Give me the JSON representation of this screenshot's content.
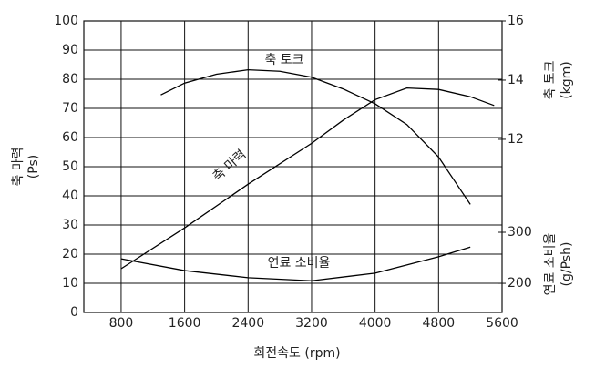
{
  "chart_data": {
    "type": "line",
    "xlabel": "회전속도 (rpm)",
    "ylabel": "축 마력",
    "yunit": "(Ps)",
    "y2label": "축 토크",
    "y2unit": "(kgm)",
    "y3label": "연료 소비율",
    "y3unit": "(g/Psh)",
    "xlim": [
      330,
      5600
    ],
    "xticks": [
      800,
      1600,
      2400,
      3200,
      4000,
      4800,
      5600
    ],
    "ylim": [
      0,
      100
    ],
    "yticks": [
      0,
      10,
      20,
      30,
      40,
      50,
      60,
      70,
      80,
      90,
      100
    ],
    "y2lim": [
      6.15,
      16
    ],
    "y2ticks": [
      12,
      14,
      16
    ],
    "y3lim": [
      143,
      714
    ],
    "y3ticks": [
      200,
      300
    ],
    "grid": true,
    "color": "#000000",
    "series": [
      {
        "name": "축 토크",
        "axis": "y2",
        "x": [
          1300,
          1600,
          2000,
          2400,
          2800,
          3200,
          3600,
          4000,
          4400,
          4800,
          5000,
          5200
        ],
        "values": [
          13.5,
          13.9,
          14.2,
          14.35,
          14.3,
          14.1,
          13.7,
          13.2,
          12.5,
          11.4,
          10.6,
          9.8
        ]
      },
      {
        "name": "축 마력",
        "axis": "y",
        "x": [
          800,
          1600,
          2400,
          3200,
          3600,
          4000,
          4400,
          4800,
          5200,
          5500
        ],
        "values": [
          15,
          29,
          44,
          58,
          66,
          73,
          77,
          76.5,
          74,
          71
        ]
      },
      {
        "name": "연료 소비율",
        "axis": "y3",
        "x": [
          800,
          1600,
          2400,
          3200,
          4000,
          4800,
          5200
        ],
        "values": [
          248,
          225,
          211,
          205,
          220,
          252,
          271
        ]
      }
    ]
  }
}
